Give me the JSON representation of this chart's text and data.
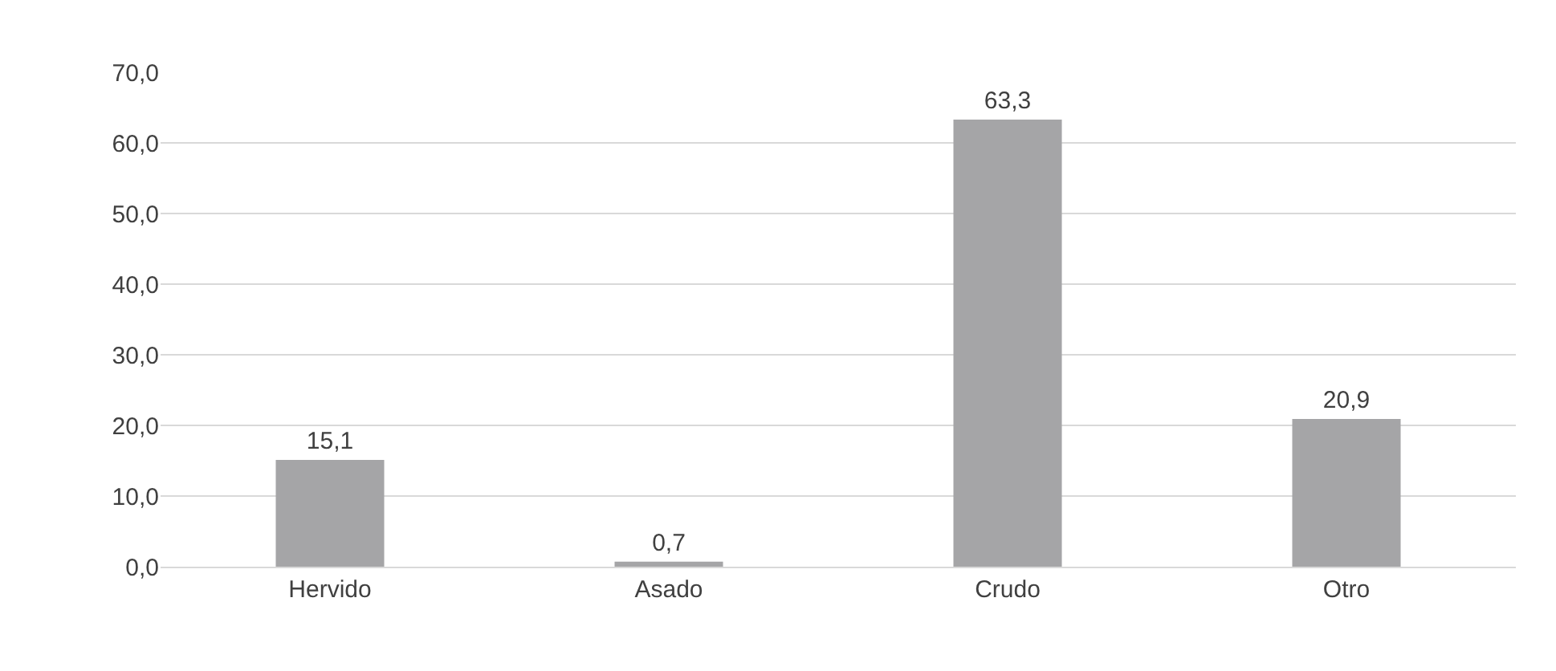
{
  "chart_data": {
    "type": "bar",
    "categories": [
      "Hervido",
      "Asado",
      "Crudo",
      "Otro"
    ],
    "values": [
      15.1,
      0.7,
      63.3,
      20.9
    ],
    "value_labels": [
      "15,1",
      "0,7",
      "63,3",
      "20,9"
    ],
    "color": "#a5a5a7",
    "ylim": [
      0,
      70
    ],
    "yticks": [
      {
        "value": 0,
        "label": "0,0"
      },
      {
        "value": 10,
        "label": "10,0"
      },
      {
        "value": 20,
        "label": "20,0"
      },
      {
        "value": 30,
        "label": "30,0"
      },
      {
        "value": 40,
        "label": "40,0"
      },
      {
        "value": 50,
        "label": "50,0"
      },
      {
        "value": 60,
        "label": "60,0"
      },
      {
        "value": 70,
        "label": "70,0"
      }
    ],
    "grid": "y"
  }
}
